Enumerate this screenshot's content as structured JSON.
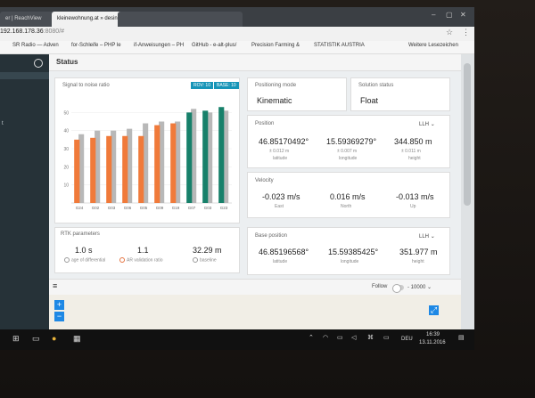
{
  "browser": {
    "tabs": [
      {
        "label": "er | ReachView"
      },
      {
        "label": "kleinewohnung.at » desin..."
      },
      {
        "label": ""
      },
      {
        "label": ""
      },
      {
        "label": ""
      }
    ],
    "url_host": "192.168.178.36",
    "url_rest": ":8080/#",
    "bookmarks": [
      "SR Radio — Adven",
      "for-Schleife – PHP le",
      "if-Anweisungen – PH",
      "GitHub - e-alt-plus/",
      "Precision Farming &",
      "STATISTIK AUSTRIA",
      "Weitere Lesezeichen"
    ]
  },
  "page": {
    "title": "Status"
  },
  "sidebar": {
    "items": [
      "t"
    ]
  },
  "snr": {
    "title": "Signal to noise ratio",
    "legend_rov": "ROV: 10",
    "legend_base": "BASE: 10",
    "colors": {
      "rover": "#f07a3a",
      "base": "#b8b8b8",
      "valid": "#17806a"
    }
  },
  "chart_data": {
    "type": "bar",
    "title": "Signal to noise ratio",
    "categories": [
      "G24",
      "G02",
      "G03",
      "G06",
      "G05",
      "G09",
      "G19",
      "G07",
      "G03",
      "G23"
    ],
    "series": [
      {
        "name": "ROV: 10",
        "values": [
          35,
          36,
          37,
          37,
          37,
          43,
          44,
          50,
          51,
          53
        ]
      },
      {
        "name": "BASE: 10",
        "values": [
          38,
          40,
          40,
          41,
          44,
          45,
          45,
          52,
          50,
          51
        ]
      }
    ],
    "yticks": [
      10,
      20,
      30,
      40,
      50
    ],
    "ylim": [
      0,
      60
    ]
  },
  "positioning": {
    "label": "Positioning mode",
    "value": "Kinematic"
  },
  "solution": {
    "label": "Solution status",
    "value": "Float"
  },
  "position": {
    "label": "Position",
    "format": "LLH",
    "latitude": "46.85170492°",
    "lat_err": "± 0.012 m",
    "lat_label": "latitude",
    "longitude": "15.59369279°",
    "lon_err": "± 0.007 m",
    "lon_label": "longitude",
    "height": "344.850 m",
    "h_err": "± 0.011 m",
    "h_label": "height"
  },
  "velocity": {
    "label": "Velocity",
    "east": "-0.023 m/s",
    "east_label": "East",
    "north": "0.016 m/s",
    "north_label": "North",
    "up": "-0.013 m/s",
    "up_label": "Up"
  },
  "rtk": {
    "label": "RTK parameters",
    "age": "1.0 s",
    "age_label": "age of differential",
    "ar": "1.1",
    "ar_label": "AR validation ratio",
    "baseline": "32.29 m",
    "baseline_label": "baseline"
  },
  "base_position": {
    "label": "Base position",
    "format": "LLH",
    "latitude": "46.85196568°",
    "lat_label": "latitude",
    "longitude": "15.59385425°",
    "lon_label": "longitude",
    "height": "351.977 m",
    "h_label": "height"
  },
  "map": {
    "follow_label": "Follow",
    "scale": "10000",
    "zoom_in": "+",
    "zoom_out": "−",
    "menu": "≡"
  },
  "taskbar": {
    "lang": "DEU",
    "time": "16:39",
    "date": "13.11.2016"
  }
}
